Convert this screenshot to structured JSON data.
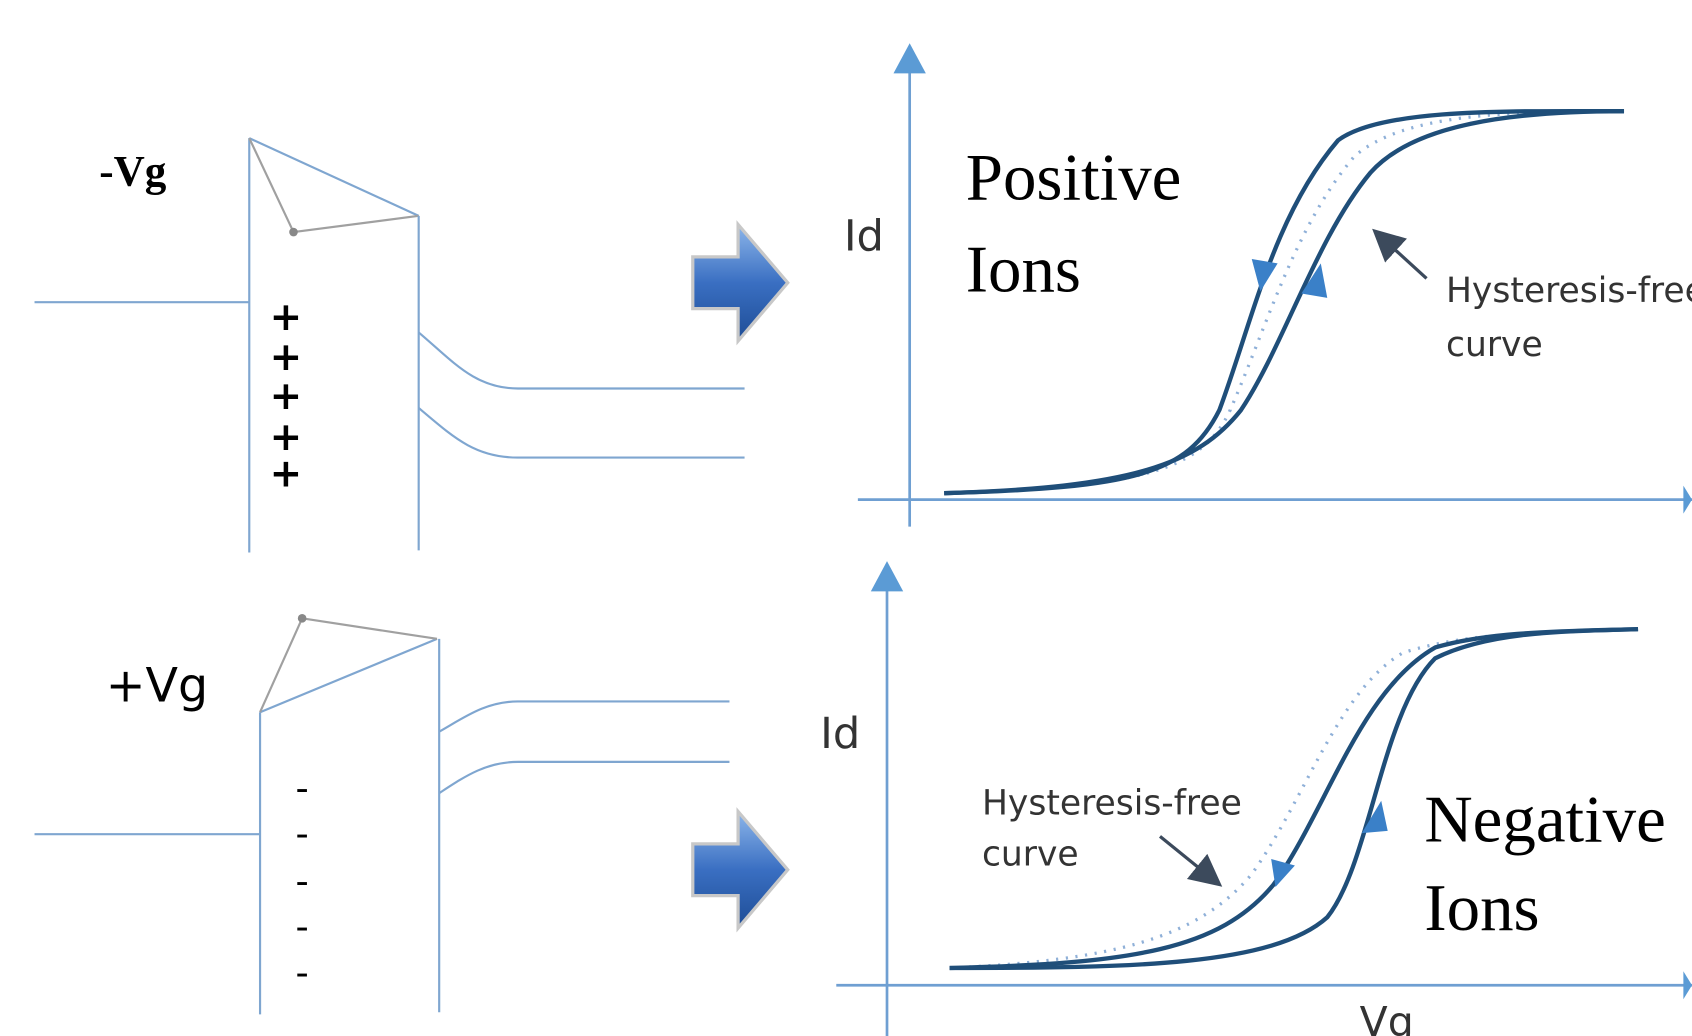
{
  "top": {
    "gate_label": "-Vg",
    "charges": [
      "+",
      "+",
      "+",
      "+",
      "+"
    ],
    "y_axis_label": "Id",
    "title_lines": [
      "Positive",
      "Ions"
    ],
    "annotation_lines": [
      "Hysteresis-free",
      "curve"
    ]
  },
  "bottom": {
    "gate_label": "+Vg",
    "charges": [
      "-",
      "-",
      "-",
      "-",
      "-"
    ],
    "y_axis_label": "Id",
    "title_lines": [
      "Negative",
      "Ions"
    ],
    "annotation_lines": [
      "Hysteresis-free",
      "curve"
    ],
    "x_axis_label": "Vg"
  }
}
